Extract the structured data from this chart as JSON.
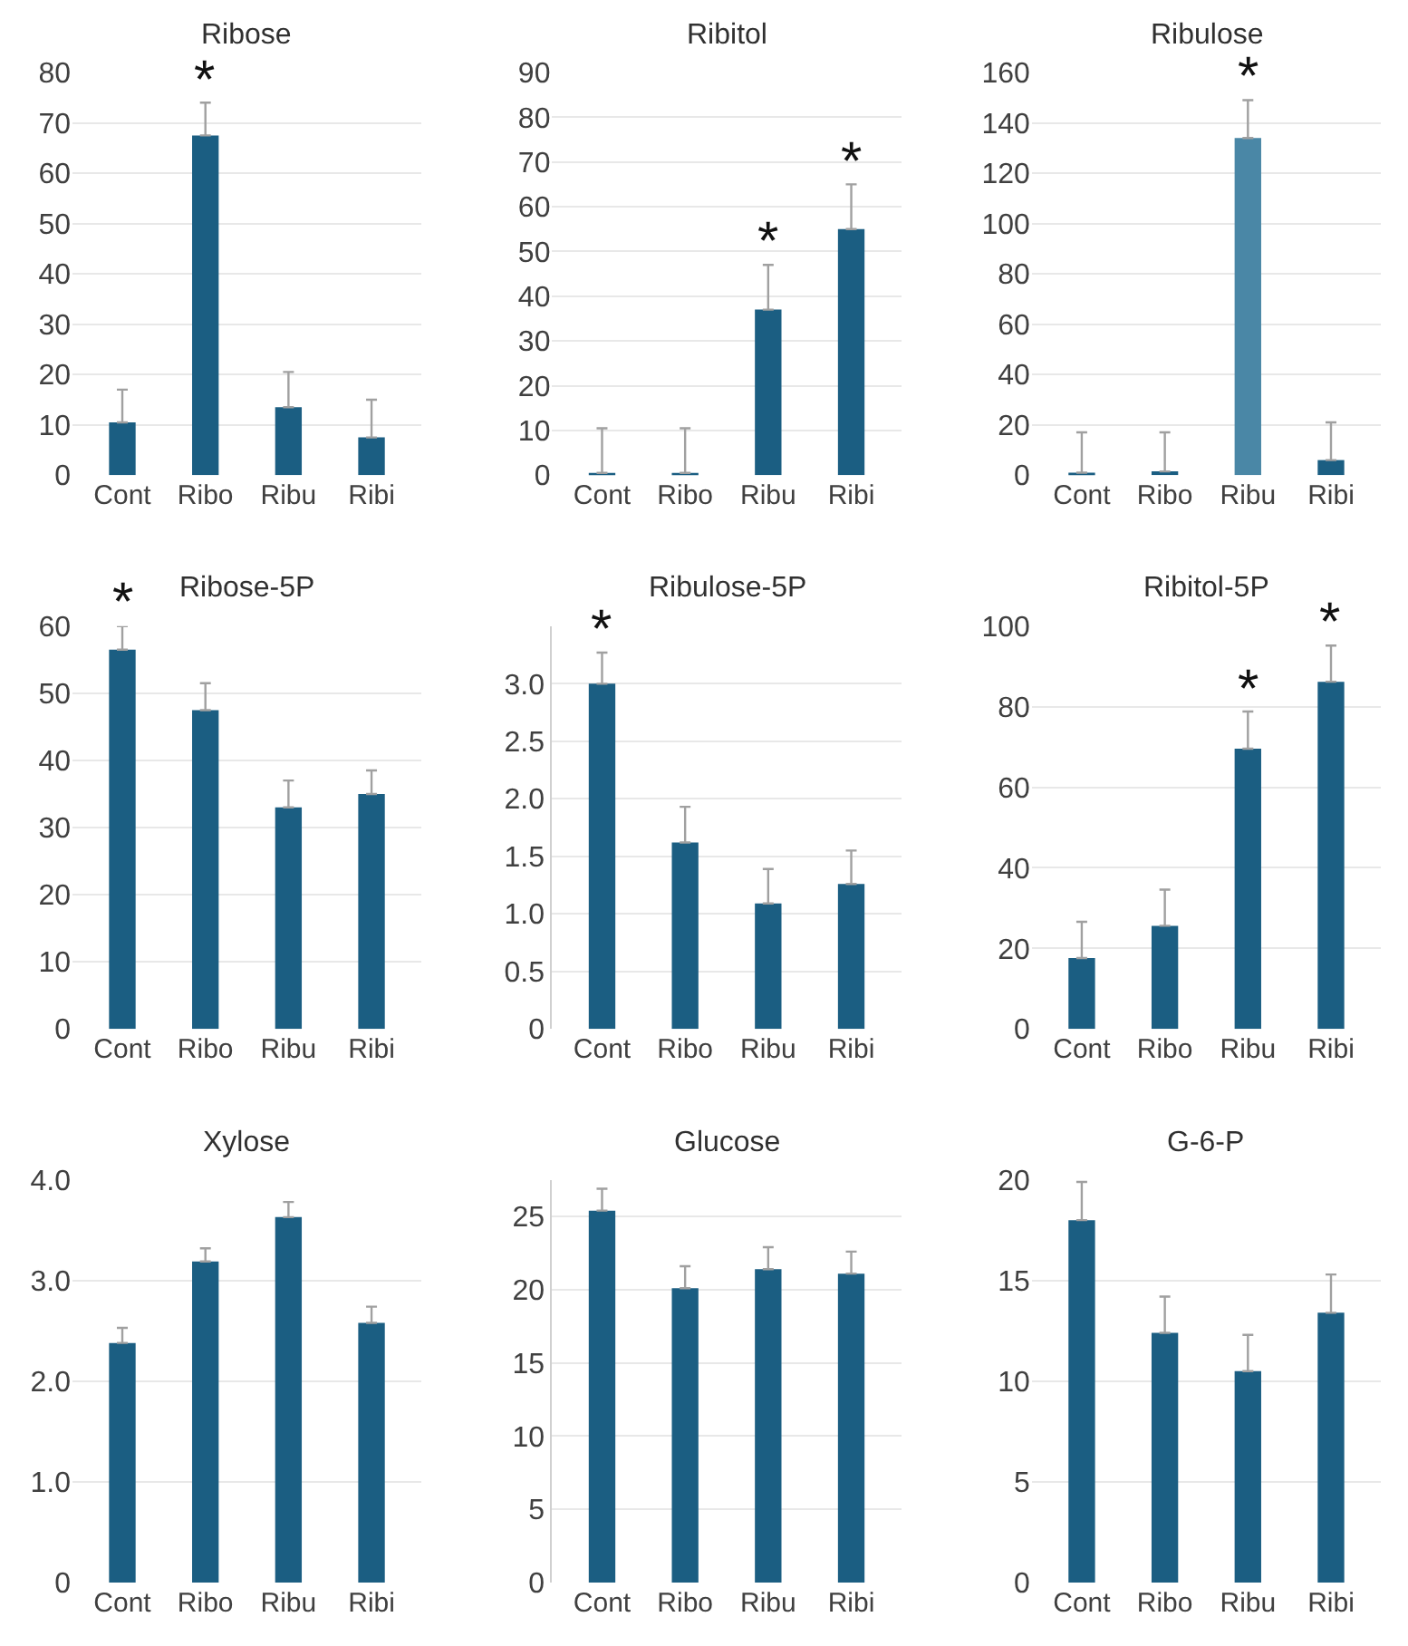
{
  "chart_data": [
    {
      "type": "bar",
      "title": "Ribose",
      "categories": [
        "Cont",
        "Ribo",
        "Ribu",
        "Ribi"
      ],
      "values": [
        10.5,
        67.5,
        13.5,
        7.5
      ],
      "errors": [
        [
          10.5,
          17
        ],
        [
          67.5,
          74
        ],
        [
          13.5,
          20.5
        ],
        [
          7.5,
          15
        ]
      ],
      "color": "#1b5e82",
      "ylim": [
        0,
        80
      ],
      "yticks": [
        0,
        10,
        20,
        30,
        40,
        50,
        60,
        70,
        80
      ],
      "grid": "y",
      "annotations": [
        {
          "text": "*",
          "x": "Ribo",
          "y": 74
        }
      ]
    },
    {
      "type": "bar",
      "title": "Ribitol",
      "categories": [
        "Cont",
        "Ribo",
        "Ribu",
        "Ribi"
      ],
      "values": [
        0.5,
        0.5,
        37,
        55
      ],
      "errors": [
        [
          0.5,
          10.5
        ],
        [
          0.5,
          10.5
        ],
        [
          37,
          47
        ],
        [
          55,
          65
        ]
      ],
      "color": "#1b5e82",
      "ylim": [
        0,
        90
      ],
      "yticks": [
        0,
        10,
        20,
        30,
        40,
        50,
        60,
        70,
        80,
        90
      ],
      "grid": "y",
      "annotations": [
        {
          "text": "*",
          "x": "Ribu",
          "y": 47
        },
        {
          "text": "*",
          "x": "Ribi",
          "y": 65
        }
      ]
    },
    {
      "type": "bar",
      "title": "Ribulose",
      "categories": [
        "Cont",
        "Ribo",
        "Ribu",
        "Ribi"
      ],
      "values": [
        1,
        1.5,
        134,
        6
      ],
      "errors": [
        [
          1,
          17
        ],
        [
          1.5,
          17
        ],
        [
          134,
          149
        ],
        [
          6,
          21
        ]
      ],
      "colors": [
        "#1b5e82",
        "#1b5e82",
        "#4a87a6",
        "#1b5e82"
      ],
      "ylim": [
        0,
        160
      ],
      "yticks": [
        0,
        20,
        40,
        60,
        80,
        100,
        120,
        140,
        160
      ],
      "grid": "y",
      "annotations": [
        {
          "text": "*",
          "x": "Ribu",
          "y": 149
        }
      ]
    },
    {
      "type": "bar",
      "title": "Ribose-5P",
      "categories": [
        "Cont",
        "Ribo",
        "Ribu",
        "Ribi"
      ],
      "values": [
        56.5,
        47.5,
        33,
        35
      ],
      "errors": [
        [
          56.5,
          60
        ],
        [
          47.5,
          51.5
        ],
        [
          33,
          37
        ],
        [
          35,
          38.5
        ]
      ],
      "color": "#1b5e82",
      "ylim": [
        0,
        60
      ],
      "yticks": [
        0,
        10,
        20,
        30,
        40,
        50,
        60
      ],
      "grid": "y",
      "annotations": [
        {
          "text": "*",
          "x": "Cont",
          "y": 60
        }
      ]
    },
    {
      "type": "bar",
      "title": "Ribulose-5P",
      "categories": [
        "Cont",
        "Ribo",
        "Ribu",
        "Ribi"
      ],
      "values": [
        3.0,
        1.62,
        1.09,
        1.26
      ],
      "errors": [
        [
          3.0,
          3.27
        ],
        [
          1.62,
          1.93
        ],
        [
          1.09,
          1.39
        ],
        [
          1.26,
          1.55
        ]
      ],
      "color": "#1b5e82",
      "ylim": [
        0,
        3.5
      ],
      "yticks": [
        0,
        {
          "value": 0.5,
          "label": "0.5"
        },
        {
          "value": 1,
          "label": "1.0"
        },
        {
          "value": 1.5,
          "label": "1.5"
        },
        {
          "value": 2,
          "label": "2.0"
        },
        {
          "value": 2.5,
          "label": "2.5"
        },
        {
          "value": 3,
          "label": "3.0"
        }
      ],
      "grid": "y",
      "annotations": [
        {
          "text": "*",
          "x": "Cont",
          "y": 3.27
        }
      ]
    },
    {
      "type": "bar",
      "title": "Ribitol-5P",
      "categories": [
        "Cont",
        "Ribo",
        "Ribu",
        "Ribi"
      ],
      "values": [
        17.6,
        25.6,
        69.6,
        86.2
      ],
      "errors": [
        [
          17.6,
          26.6
        ],
        [
          25.6,
          34.6
        ],
        [
          69.6,
          78.8
        ],
        [
          86.2,
          95.2
        ]
      ],
      "color": "#1b5e82",
      "ylim": [
        0,
        100
      ],
      "yticks": [
        0,
        20,
        40,
        60,
        80,
        100
      ],
      "grid": "y",
      "annotations": [
        {
          "text": "*",
          "x": "Ribu",
          "y": 78.8
        },
        {
          "text": "*",
          "x": "Ribi",
          "y": 95.2
        }
      ]
    },
    {
      "type": "bar",
      "title": "Xylose",
      "categories": [
        "Cont",
        "Ribo",
        "Ribu",
        "Ribi"
      ],
      "values": [
        2.38,
        3.19,
        3.63,
        2.58
      ],
      "errors": [
        [
          2.38,
          2.53
        ],
        [
          3.19,
          3.32
        ],
        [
          3.63,
          3.78
        ],
        [
          2.58,
          2.74
        ]
      ],
      "color": "#1b5e82",
      "ylim": [
        0,
        4
      ],
      "yticks": [
        0,
        {
          "value": 1,
          "label": "1.0"
        },
        {
          "value": 2,
          "label": "2.0"
        },
        {
          "value": 3,
          "label": "3.0"
        },
        {
          "value": 4,
          "label": "4.0"
        }
      ],
      "grid": "y"
    },
    {
      "type": "bar",
      "title": "Glucose",
      "categories": [
        "Cont",
        "Ribo",
        "Ribu",
        "Ribi"
      ],
      "values": [
        25.4,
        20.1,
        21.4,
        21.1
      ],
      "errors": [
        [
          25.4,
          26.9
        ],
        [
          20.1,
          21.6
        ],
        [
          21.4,
          22.9
        ],
        [
          21.1,
          22.6
        ]
      ],
      "color": "#1b5e82",
      "ylim": [
        0,
        27.5
      ],
      "yticks": [
        0,
        5,
        10,
        15,
        20,
        25
      ],
      "grid": "y"
    },
    {
      "type": "bar",
      "title": "G-6-P",
      "categories": [
        "Cont",
        "Ribo",
        "Ribu",
        "Ribi"
      ],
      "values": [
        18.0,
        12.4,
        10.5,
        13.4
      ],
      "errors": [
        [
          18.0,
          19.9
        ],
        [
          12.4,
          14.2
        ],
        [
          10.5,
          12.3
        ],
        [
          13.4,
          15.3
        ]
      ],
      "color": "#1b5e82",
      "ylim": [
        0,
        20
      ],
      "yticks": [
        0,
        5,
        10,
        15,
        20
      ],
      "grid": "y"
    }
  ]
}
